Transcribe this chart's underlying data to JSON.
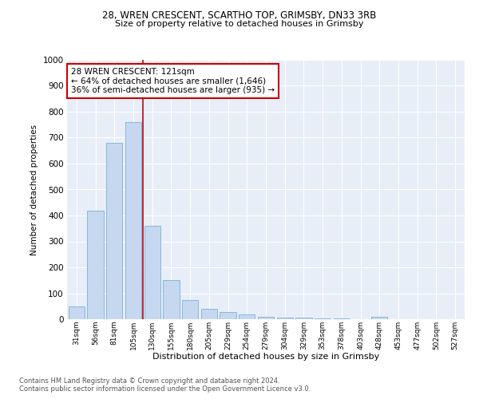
{
  "title1": "28, WREN CRESCENT, SCARTHO TOP, GRIMSBY, DN33 3RB",
  "title2": "Size of property relative to detached houses in Grimsby",
  "xlabel": "Distribution of detached houses by size in Grimsby",
  "ylabel": "Number of detached properties",
  "categories": [
    "31sqm",
    "56sqm",
    "81sqm",
    "105sqm",
    "130sqm",
    "155sqm",
    "180sqm",
    "205sqm",
    "229sqm",
    "254sqm",
    "279sqm",
    "304sqm",
    "329sqm",
    "353sqm",
    "378sqm",
    "403sqm",
    "428sqm",
    "453sqm",
    "477sqm",
    "502sqm",
    "527sqm"
  ],
  "values": [
    50,
    420,
    680,
    760,
    360,
    150,
    75,
    40,
    27,
    18,
    10,
    7,
    5,
    3,
    2,
    1,
    10,
    1,
    0,
    0,
    0
  ],
  "bar_color": "#c5d8f0",
  "bar_edge_color": "#7bafd4",
  "marker_color": "#cc0000",
  "annotation_text": "28 WREN CRESCENT: 121sqm\n← 64% of detached houses are smaller (1,646)\n36% of semi-detached houses are larger (935) →",
  "annotation_box_color": "#ffffff",
  "annotation_box_edge": "#cc0000",
  "footer1": "Contains HM Land Registry data © Crown copyright and database right 2024.",
  "footer2": "Contains public sector information licensed under the Open Government Licence v3.0.",
  "ylim": [
    0,
    1000
  ],
  "yticks": [
    0,
    100,
    200,
    300,
    400,
    500,
    600,
    700,
    800,
    900,
    1000
  ],
  "bg_color": "#e8eef8",
  "fig_bg_color": "#ffffff"
}
